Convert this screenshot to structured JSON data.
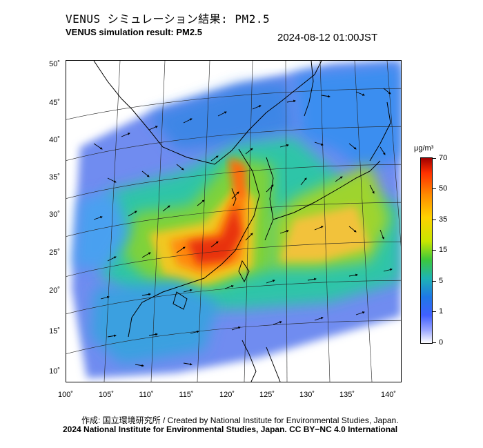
{
  "header": {
    "title_ja": "VENUS シミュレーション結果: PM2.5",
    "title_en": "VENUS simulation result: PM2.5",
    "timestamp": "2024-08-12 01:00JST"
  },
  "axes": {
    "lat_labels": [
      "50˚",
      "45˚",
      "40˚",
      "35˚",
      "30˚",
      "25˚",
      "20˚",
      "15˚",
      "10˚"
    ],
    "lon_labels": [
      "100˚",
      "105˚",
      "110˚",
      "115˚",
      "120˚",
      "125˚",
      "130˚",
      "135˚",
      "140˚"
    ]
  },
  "colorbar": {
    "unit": "μg/m³",
    "labels": [
      "70",
      "50",
      "35",
      "15",
      "5",
      "1",
      "0"
    ]
  },
  "footer": {
    "credit_line": "作成: 国立環境研究所 / Created by National Institute for Environmental Studies, Japan.",
    "license_line": "2024 National Institute for Environmental Studies, Japan. CC BY−NC 4.0 International"
  }
}
